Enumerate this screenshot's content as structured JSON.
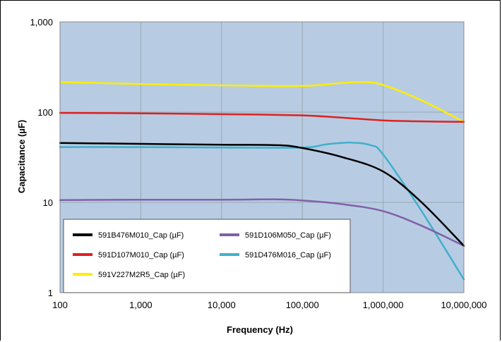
{
  "chart_data": {
    "type": "line",
    "title": "",
    "xlabel": "Frequency (Hz)",
    "ylabel": "Capacitance (µF)",
    "x_scale": "log",
    "y_scale": "log",
    "xlim": [
      100,
      10000000
    ],
    "ylim": [
      1,
      1000
    ],
    "x_ticks": [
      100,
      1000,
      10000,
      100000,
      1000000,
      10000000
    ],
    "x_tick_labels": [
      "100",
      "1,000",
      "10,000",
      "100,000",
      "1,000,000",
      "10,000,000"
    ],
    "y_ticks": [
      1,
      10,
      100,
      1000
    ],
    "y_tick_labels": [
      "1",
      "10",
      "100",
      "1,000"
    ],
    "grid": true,
    "plot_background": "#b7cce3",
    "legend_position": "bottom-left",
    "series": [
      {
        "name": "591B476M010_Cap (µF)",
        "color": "#000000",
        "x": [
          100,
          1000,
          10000,
          50000,
          100000,
          300000,
          1000000,
          3000000,
          10000000
        ],
        "values": [
          45.5,
          44.5,
          43.5,
          43,
          40,
          32,
          22,
          10,
          3.3
        ]
      },
      {
        "name": "591D106M050_Cap (µF)",
        "color": "#8060a8",
        "x": [
          100,
          1000,
          10000,
          50000,
          100000,
          300000,
          1000000,
          3000000,
          10000000
        ],
        "values": [
          10.6,
          10.7,
          10.7,
          10.8,
          10.5,
          9.6,
          8,
          5.5,
          3.3
        ]
      },
      {
        "name": "591D107M010_Cap (µF)",
        "color": "#e02020",
        "x": [
          100,
          1000,
          10000,
          100000,
          300000,
          1000000,
          3000000,
          10000000
        ],
        "values": [
          98,
          97,
          95,
          92,
          87,
          81,
          79,
          78
        ]
      },
      {
        "name": "591D476M016_Cap (µF)",
        "color": "#40b0cc",
        "x": [
          100,
          1000,
          10000,
          100000,
          200000,
          400000,
          700000,
          1000000,
          3000000,
          10000000
        ],
        "values": [
          41,
          41,
          40.5,
          40.5,
          44,
          46,
          43,
          34,
          8,
          1.4
        ]
      },
      {
        "name": "591V227M2R5_Cap (µF)",
        "color": "#ffee00",
        "x": [
          100,
          1000,
          10000,
          100000,
          300000,
          600000,
          1000000,
          3000000,
          10000000
        ],
        "values": [
          215,
          205,
          198,
          195,
          210,
          215,
          200,
          135,
          78
        ]
      }
    ]
  }
}
